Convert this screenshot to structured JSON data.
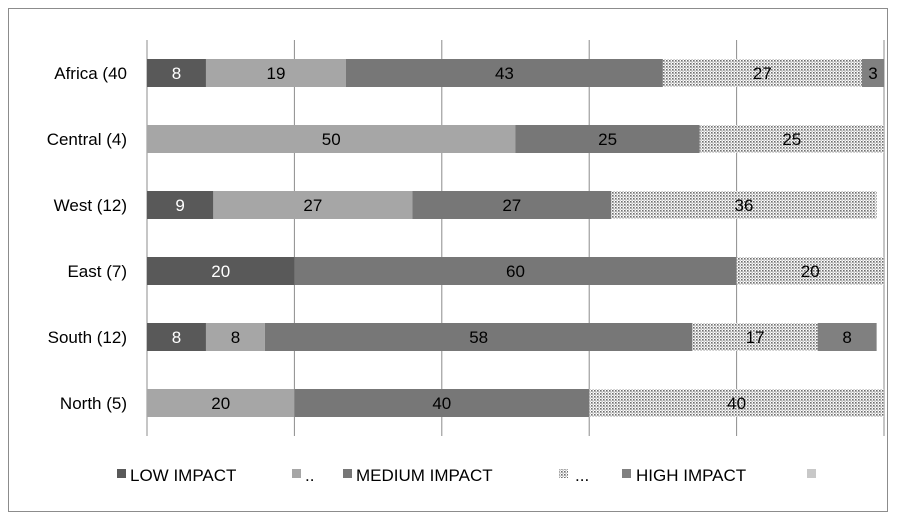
{
  "chart_data": {
    "type": "bar",
    "orientation": "horizontal",
    "stacked": true,
    "percent_stacked": true,
    "xlim": [
      0,
      100
    ],
    "grid": true,
    "legend_position": "bottom",
    "categories": [
      "Africa (40",
      "Central (4)",
      "West (12)",
      "East (7)",
      "South (12)",
      "North (5)"
    ],
    "series": [
      {
        "name": "LOW IMPACT",
        "color": "#595959",
        "fill": "solid",
        "label_color": "#ffffff",
        "values": [
          8,
          0,
          9,
          20,
          8,
          0
        ]
      },
      {
        "name": "..",
        "color": "#a6a6a6",
        "fill": "solid",
        "label_color": "#000000",
        "values": [
          19,
          50,
          27,
          0,
          8,
          20
        ]
      },
      {
        "name": "MEDIUM IMPACT",
        "color": "#777777",
        "fill": "solid",
        "label_color": "#000000",
        "values": [
          43,
          25,
          27,
          60,
          58,
          40
        ]
      },
      {
        "name": "...",
        "color": "#c8c8c8",
        "fill": "dotted",
        "label_color": "#000000",
        "values": [
          27,
          25,
          36,
          20,
          17,
          40
        ]
      },
      {
        "name": "HIGH IMPACT",
        "color": "#808080",
        "fill": "solid",
        "label_color": "#000000",
        "values": [
          3,
          0,
          0,
          0,
          8,
          0
        ]
      },
      {
        "name": "",
        "color": "#c8c8c8",
        "fill": "solid",
        "label_color": "#000000",
        "values": [
          0,
          0,
          0,
          0,
          0,
          0
        ]
      }
    ]
  }
}
